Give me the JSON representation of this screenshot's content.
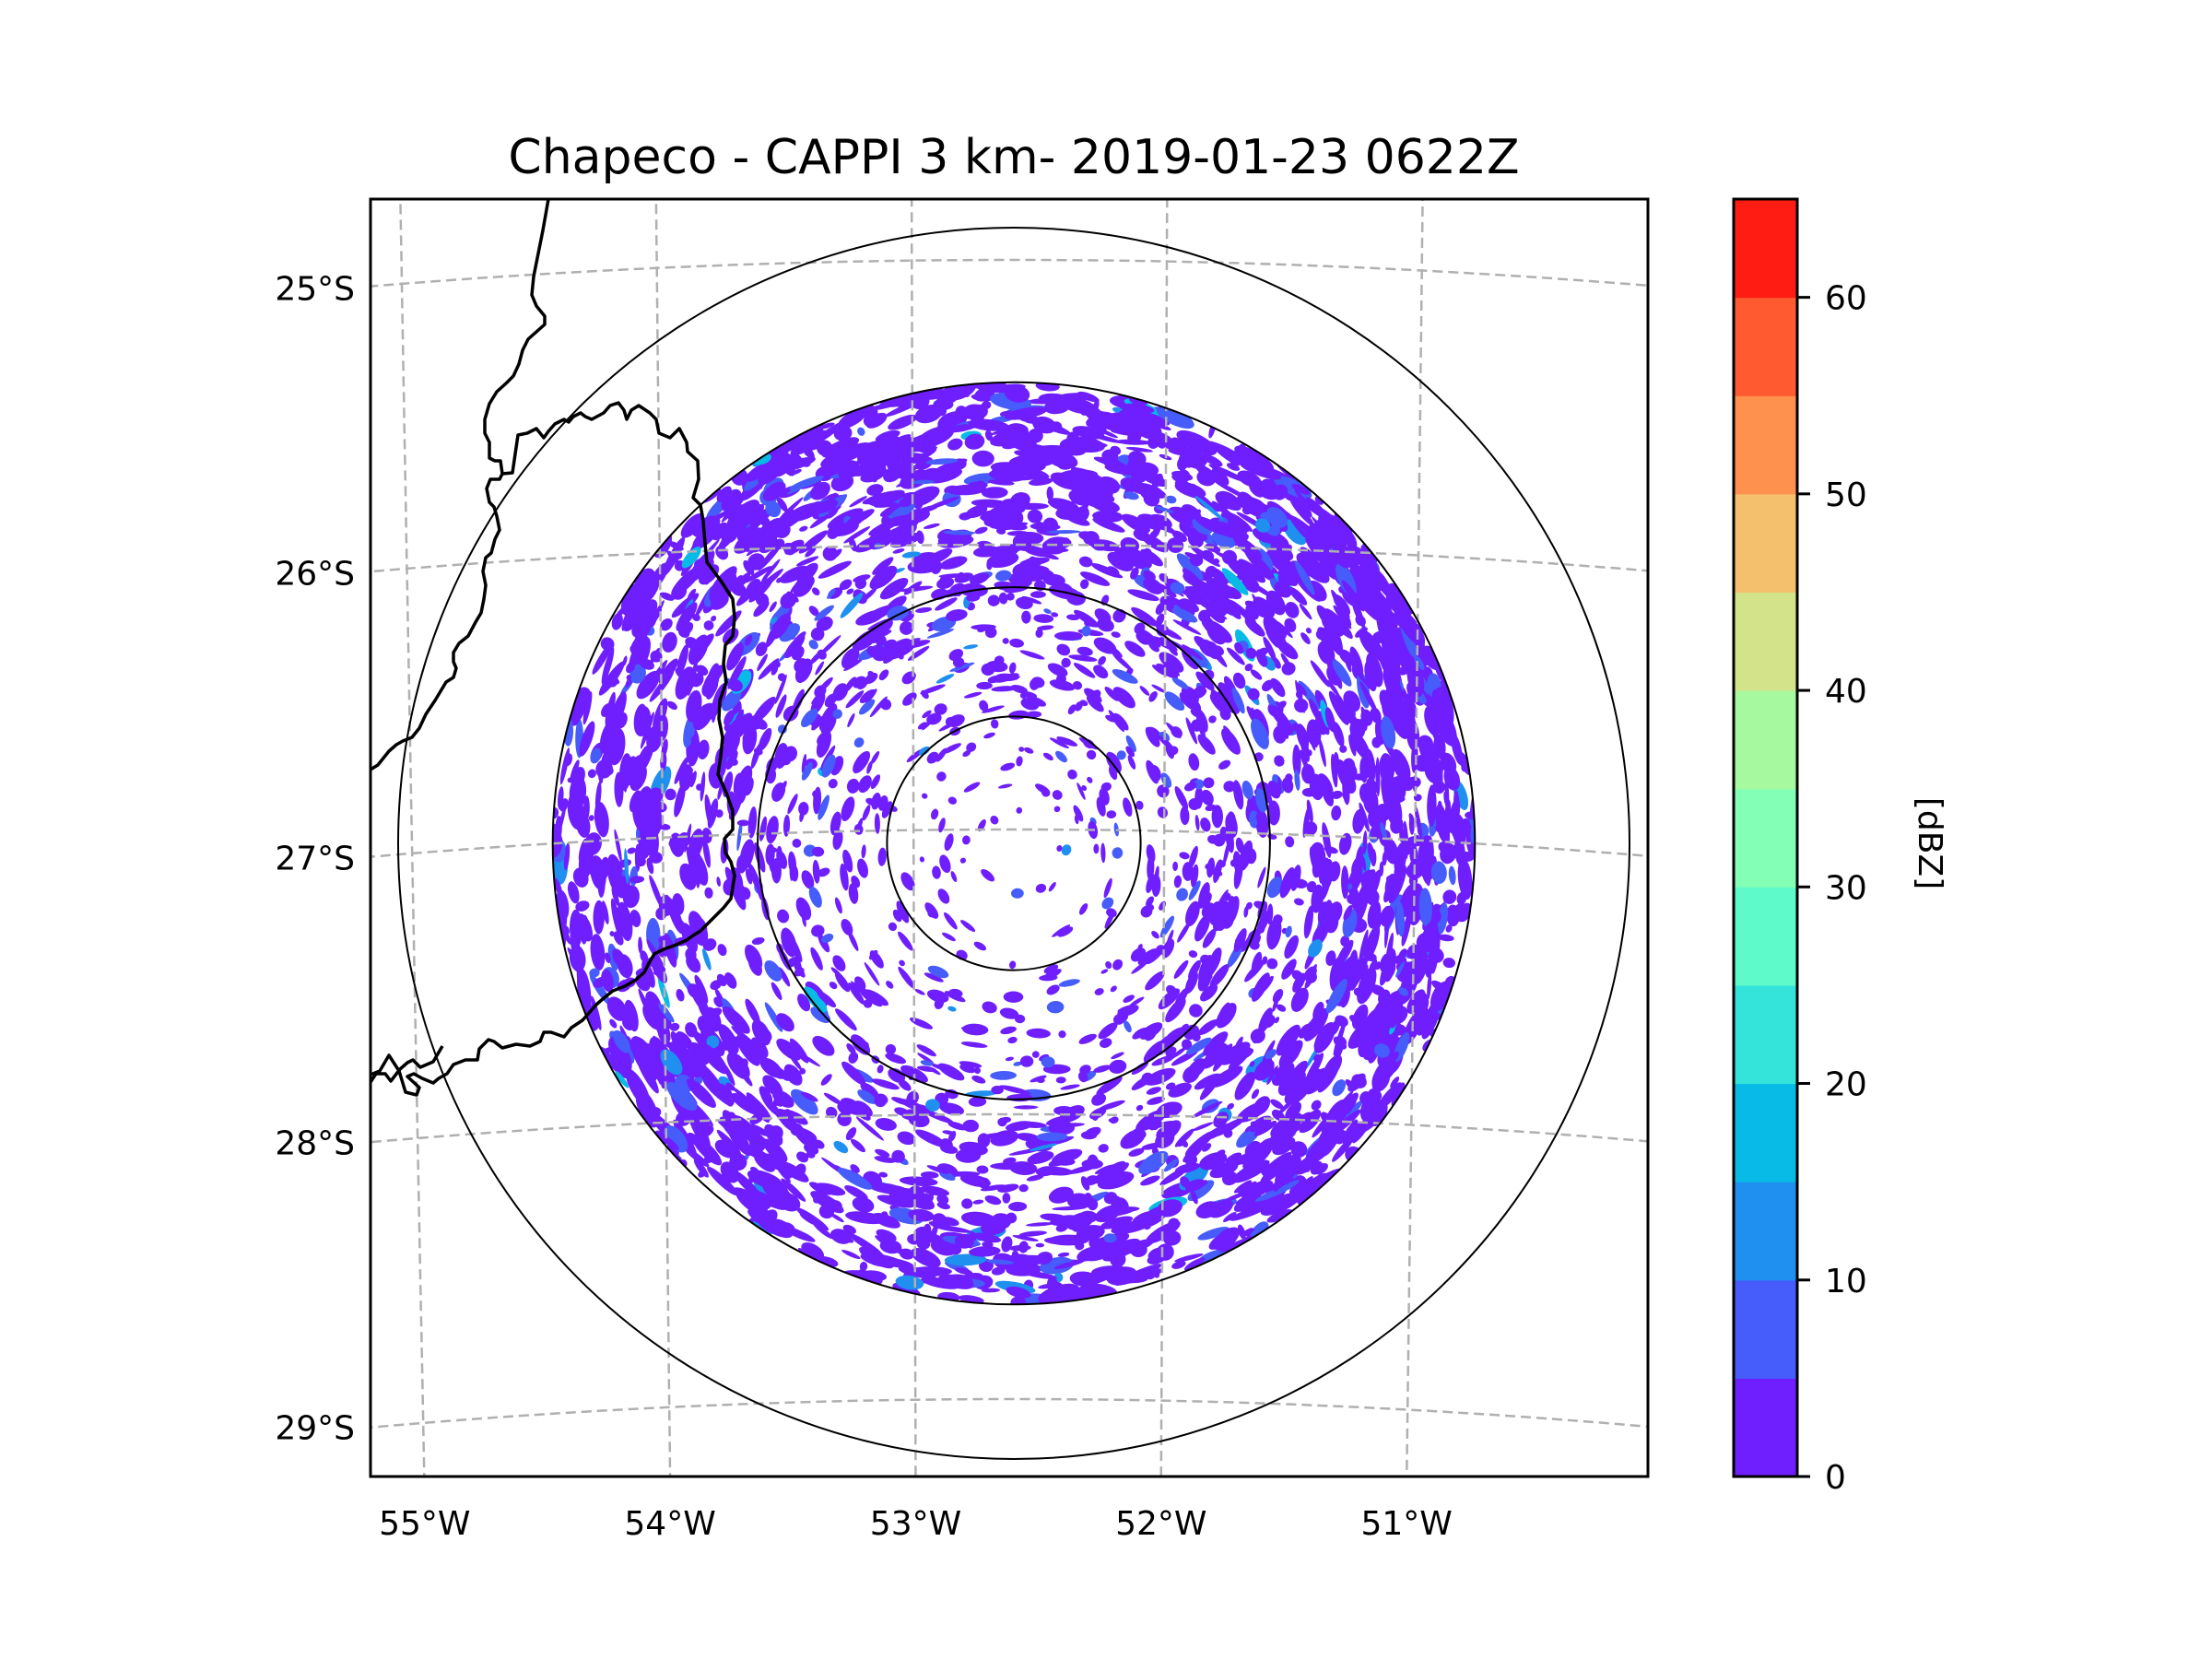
{
  "chart_data": {
    "type": "heatmap",
    "subtype": "radar-ppi-map",
    "title": "Chapeco - CAPPI 3 km- 2019-01-23 0622Z",
    "radar_site": "Chapeco",
    "product": "CAPPI 3 km",
    "datetime": "2019-01-23 0622Z",
    "projection": "azimuthal (radar-centered)",
    "radar_center": {
      "lon": -52.6,
      "lat": -27.0
    },
    "extent": {
      "lon": [
        -55.2,
        -50.1
      ],
      "lat": [
        -29.3,
        -24.8
      ]
    },
    "x_ticks": [
      {
        "value": -55,
        "label": "55°W"
      },
      {
        "value": -54,
        "label": "54°W"
      },
      {
        "value": -53,
        "label": "53°W"
      },
      {
        "value": -52,
        "label": "52°W"
      },
      {
        "value": -51,
        "label": "51°W"
      }
    ],
    "y_ticks": [
      {
        "value": -25,
        "label": "25°S"
      },
      {
        "value": -26,
        "label": "26°S"
      },
      {
        "value": -27,
        "label": "27°S"
      },
      {
        "value": -28,
        "label": "28°S"
      },
      {
        "value": -29,
        "label": "29°S"
      }
    ],
    "gridlines": true,
    "range_rings_count": 4,
    "range_rings_fraction_of_outer": [
      0.206,
      0.416,
      0.749,
      1.0
    ],
    "data_coverage_fraction_of_outer": 0.749,
    "echo_description": "Widespread weak echoes (0-10 dBZ, mostly 0-5 dBZ), densest in the northern and eastern sectors between the second and third range rings; sparse near radar; a few 10-20 dBZ pixels.",
    "colorbar": {
      "label": "[dBZ]",
      "placement": "right",
      "min": 0,
      "max": 65,
      "step": 5,
      "ticks": [
        0,
        10,
        20,
        30,
        40,
        50,
        60
      ],
      "tick_labels": [
        "0",
        "10",
        "20",
        "30",
        "40",
        "50",
        "60"
      ],
      "bins": [
        {
          "from": 0,
          "to": 5,
          "color": "#6f1efe"
        },
        {
          "from": 5,
          "to": 10,
          "color": "#465cfb"
        },
        {
          "from": 10,
          "to": 15,
          "color": "#1f8ff0"
        },
        {
          "from": 15,
          "to": 20,
          "color": "#08bbe6"
        },
        {
          "from": 20,
          "to": 25,
          "color": "#34e3da"
        },
        {
          "from": 25,
          "to": 30,
          "color": "#5ffac9"
        },
        {
          "from": 30,
          "to": 35,
          "color": "#83ffb6"
        },
        {
          "from": 35,
          "to": 40,
          "color": "#a6f99f"
        },
        {
          "from": 40,
          "to": 45,
          "color": "#d2e38a"
        },
        {
          "from": 45,
          "to": 50,
          "color": "#f4c06d"
        },
        {
          "from": 50,
          "to": 55,
          "color": "#ff914e"
        },
        {
          "from": 55,
          "to": 60,
          "color": "#ff5a30"
        },
        {
          "from": 60,
          "to": 65,
          "color": "#ff1d13"
        }
      ]
    },
    "echo_level_mix": [
      {
        "dbz_bin": "0-5",
        "share": 0.9
      },
      {
        "dbz_bin": "5-10",
        "share": 0.08
      },
      {
        "dbz_bin": "10-15",
        "share": 0.015
      },
      {
        "dbz_bin": "15-20",
        "share": 0.005
      }
    ]
  },
  "style": {
    "grid_color": "#b0b0b0",
    "border_color": "#000000",
    "ring_color": "#000000"
  }
}
